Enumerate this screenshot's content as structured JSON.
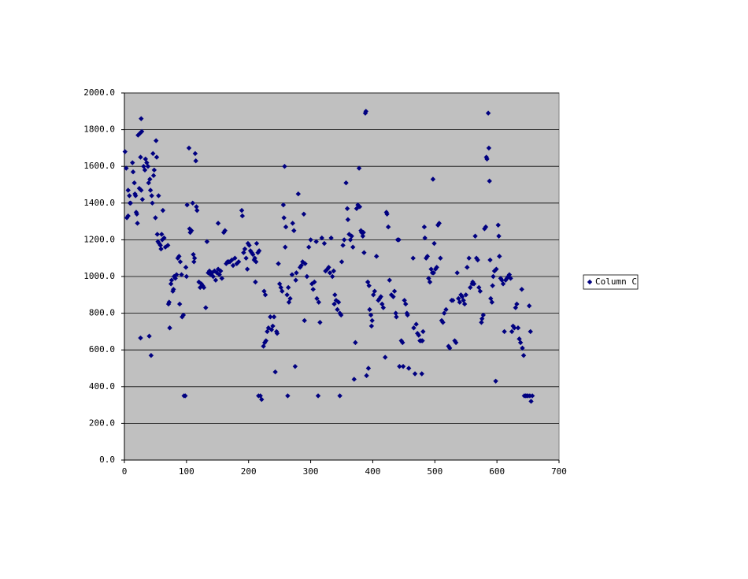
{
  "chart_data": {
    "type": "scatter",
    "grid": true,
    "legend": "right",
    "xlim": [
      0,
      700
    ],
    "xticks": [
      0,
      100,
      200,
      300,
      400,
      500,
      600,
      700
    ],
    "ylim": [
      0,
      2000
    ],
    "yticks": [
      {
        "value": 0,
        "label": "0.0"
      },
      {
        "value": 200,
        "label": "200.0"
      },
      {
        "value": 400,
        "label": "400.0"
      },
      {
        "value": 600,
        "label": "600.0"
      },
      {
        "value": 800,
        "label": "800.0"
      },
      {
        "value": 1000,
        "label": "1000.0"
      },
      {
        "value": 1200,
        "label": "1200.0"
      },
      {
        "value": 1400,
        "label": "1400.0"
      },
      {
        "value": 1600,
        "label": "1600.0"
      },
      {
        "value": 1800,
        "label": "1800.0"
      },
      {
        "value": 2000,
        "label": "2000.0"
      }
    ],
    "series": [
      {
        "name": "Column C",
        "color": "#000080",
        "x": [
          1,
          3,
          4,
          6,
          6,
          8,
          9,
          10,
          13,
          14,
          16,
          17,
          18,
          19,
          20,
          21,
          22,
          25,
          27,
          28,
          26,
          24,
          27,
          29,
          26,
          31,
          33,
          34,
          36,
          38,
          39,
          41,
          42,
          44,
          45,
          46,
          47,
          48,
          40,
          43,
          51,
          52,
          50,
          55,
          53,
          54,
          56,
          58,
          59,
          60,
          61,
          62,
          64,
          66,
          70,
          71,
          72,
          73,
          75,
          76,
          78,
          79,
          80,
          82,
          84,
          86,
          88,
          90,
          92,
          89,
          93,
          95,
          96,
          98,
          101,
          104,
          105,
          106,
          108,
          110,
          114,
          115,
          116,
          117,
          111,
          113,
          112,
          100,
          99,
          120,
          122,
          124,
          126,
          128,
          131,
          133,
          135,
          137,
          139,
          141,
          143,
          145,
          147,
          149,
          151,
          153,
          151,
          155,
          157,
          160,
          162,
          164,
          166,
          168,
          170,
          173,
          175,
          178,
          181,
          184,
          189,
          190,
          192,
          194,
          196,
          198,
          199,
          201,
          203,
          205,
          207,
          209,
          210,
          212,
          213,
          215,
          211,
          217,
          216,
          219,
          221,
          224,
          226,
          228,
          225,
          227,
          230,
          232,
          235,
          237,
          239,
          241,
          243,
          245,
          246,
          248,
          250,
          252,
          254,
          258,
          256,
          257,
          259,
          260,
          263,
          265,
          267,
          262,
          264,
          270,
          271,
          273,
          275,
          277,
          276,
          280,
          283,
          285,
          287,
          289,
          291,
          290,
          294,
          297,
          300,
          302,
          304,
          306,
          309,
          312,
          310,
          313,
          315,
          318,
          322,
          324,
          327,
          329,
          331,
          333,
          335,
          337,
          339,
          338,
          341,
          343,
          345,
          347,
          349,
          347,
          350,
          352,
          354,
          357,
          359,
          360,
          362,
          364,
          366,
          368,
          370,
          372,
          374,
          376,
          378,
          379,
          381,
          382,
          384,
          385,
          388,
          389,
          386,
          390,
          393,
          392,
          394,
          395,
          397,
          399,
          398,
          401,
          403,
          406,
          409,
          411,
          413,
          415,
          417,
          420,
          422,
          423,
          425,
          427,
          430,
          433,
          435,
          437,
          438,
          440,
          442,
          443,
          446,
          448,
          449,
          451,
          453,
          455,
          456,
          458,
          468,
          470,
          472,
          474,
          476,
          478,
          465,
          466,
          480,
          479,
          481,
          483,
          484,
          486,
          488,
          490,
          492,
          494,
          496,
          498,
          497,
          499,
          501,
          503,
          505,
          507,
          509,
          511,
          513,
          515,
          518,
          522,
          524,
          527,
          529,
          532,
          534,
          536,
          538,
          540,
          542,
          544,
          546,
          548,
          550,
          552,
          555,
          557,
          560,
          561,
          563,
          565,
          567,
          569,
          571,
          573,
          575,
          576,
          578,
          580,
          582,
          583,
          584,
          586,
          587,
          588,
          589,
          590,
          592,
          593,
          594,
          598,
          596,
          599,
          602,
          603,
          604,
          606,
          608,
          610,
          612,
          614,
          616,
          618,
          620,
          622,
          624,
          626,
          628,
          630,
          632,
          634,
          636,
          638,
          640,
          641,
          643,
          644,
          646,
          648,
          650,
          653,
          652,
          654,
          655,
          657
        ],
        "values": [
          1680,
          1590,
          1320,
          1330,
          1470,
          1440,
          1400,
          1400,
          1620,
          1570,
          1510,
          1450,
          1440,
          1350,
          1340,
          1290,
          1770,
          1780,
          1860,
          1790,
          1650,
          1480,
          1470,
          1420,
          665,
          1600,
          1580,
          1640,
          1620,
          1600,
          1510,
          1530,
          1470,
          1440,
          1400,
          1670,
          1550,
          1580,
          675,
          570,
          1740,
          1650,
          1320,
          1440,
          1230,
          1190,
          1180,
          1170,
          1150,
          1230,
          1200,
          1360,
          1210,
          1160,
          1170,
          850,
          860,
          720,
          960,
          980,
          920,
          930,
          1000,
          990,
          1010,
          1100,
          1110,
          1080,
          1010,
          850,
          780,
          790,
          350,
          350,
          1390,
          1700,
          1260,
          1240,
          1250,
          1400,
          1670,
          1630,
          1380,
          1360,
          1120,
          1100,
          1080,
          1000,
          1050,
          970,
          940,
          960,
          950,
          940,
          830,
          1190,
          1020,
          1030,
          1010,
          1020,
          1000,
          1030,
          980,
          1020,
          1040,
          1010,
          1290,
          1030,
          990,
          1240,
          1250,
          1070,
          1080,
          1080,
          1080,
          1090,
          1060,
          1100,
          1070,
          1080,
          1360,
          1330,
          1130,
          1150,
          1100,
          1040,
          1180,
          1170,
          1140,
          1130,
          1120,
          1090,
          1100,
          1080,
          1180,
          1130,
          970,
          1140,
          350,
          350,
          330,
          620,
          640,
          650,
          920,
          900,
          700,
          720,
          780,
          710,
          730,
          780,
          480,
          700,
          690,
          1070,
          960,
          940,
          920,
          1600,
          1390,
          1320,
          1160,
          1270,
          350,
          860,
          880,
          900,
          940,
          1010,
          1290,
          1250,
          510,
          1020,
          980,
          1450,
          1050,
          1060,
          1080,
          1340,
          1070,
          760,
          1000,
          1160,
          1200,
          960,
          930,
          970,
          1190,
          350,
          880,
          860,
          750,
          1210,
          1180,
          1030,
          1040,
          1050,
          1020,
          1210,
          1000,
          1030,
          900,
          850,
          870,
          820,
          860,
          800,
          790,
          350,
          1080,
          1170,
          1200,
          1510,
          1370,
          1310,
          1230,
          1200,
          1220,
          1160,
          440,
          640,
          1370,
          1390,
          1590,
          1380,
          1250,
          1240,
          1220,
          1240,
          1890,
          1900,
          1130,
          460,
          500,
          970,
          950,
          820,
          790,
          760,
          730,
          900,
          920,
          1110,
          870,
          880,
          890,
          850,
          830,
          560,
          1350,
          1340,
          1270,
          980,
          900,
          890,
          920,
          800,
          780,
          1200,
          1200,
          510,
          650,
          640,
          510,
          870,
          850,
          800,
          790,
          500,
          470,
          740,
          690,
          680,
          650,
          650,
          1100,
          720,
          650,
          470,
          700,
          1270,
          1210,
          1100,
          1110,
          990,
          970,
          1040,
          1020,
          1020,
          1530,
          1180,
          1040,
          1050,
          1280,
          1290,
          1100,
          760,
          750,
          800,
          820,
          620,
          610,
          870,
          870,
          650,
          640,
          1020,
          880,
          860,
          900,
          890,
          870,
          850,
          900,
          1050,
          1100,
          940,
          960,
          970,
          960,
          1220,
          1100,
          1090,
          940,
          920,
          750,
          770,
          790,
          1260,
          1270,
          1650,
          1640,
          1890,
          1700,
          1520,
          1090,
          880,
          860,
          950,
          1000,
          430,
          1030,
          1040,
          1280,
          1220,
          1110,
          990,
          980,
          960,
          700,
          980,
          990,
          1000,
          1010,
          990,
          700,
          730,
          720,
          830,
          850,
          720,
          660,
          640,
          930,
          610,
          570,
          350,
          350,
          350,
          350,
          350,
          840,
          700,
          320,
          350
        ]
      }
    ]
  }
}
